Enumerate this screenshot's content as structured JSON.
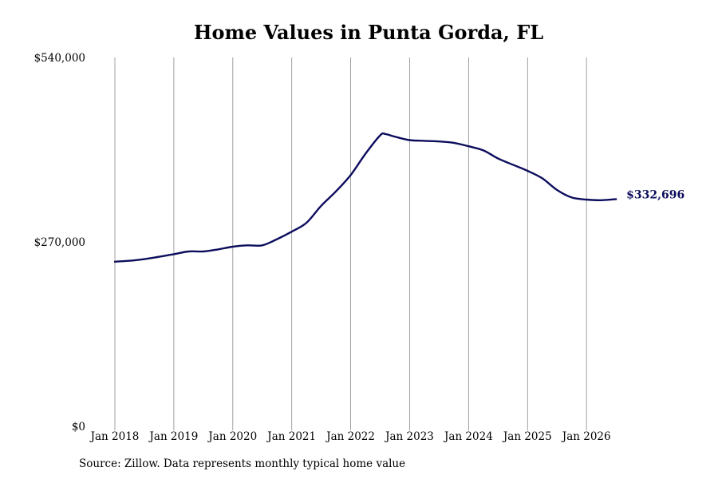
{
  "title": "Home Values in Punta Gorda, FL",
  "source": "Source: Zillow. Data represents monthly typical home value",
  "colors": {
    "line": "#0d0d5e",
    "grid": "#8a8a8a",
    "text": "#000000"
  },
  "chart_data": {
    "type": "line",
    "title": "Home Values in Punta Gorda, FL",
    "xlabel": "",
    "ylabel": "",
    "ylim": [
      0,
      540000
    ],
    "y_ticks": [
      0,
      270000,
      540000
    ],
    "y_tick_labels": [
      "$0",
      "$270,000",
      "$540,000"
    ],
    "x_ticks": [
      "2018-01",
      "2019-01",
      "2020-01",
      "2021-01",
      "2022-01",
      "2023-01",
      "2024-01",
      "2025-01",
      "2026-01"
    ],
    "x_tick_labels": [
      "Jan 2018",
      "Jan 2019",
      "Jan 2020",
      "Jan 2021",
      "Jan 2022",
      "Jan 2023",
      "Jan 2024",
      "Jan 2025",
      "Jan 2026"
    ],
    "grid": {
      "vertical": true,
      "horizontal": false
    },
    "end_label": "$332,696",
    "series": [
      {
        "x": [
          "2018-01",
          "2018-05",
          "2018-09",
          "2019-01",
          "2019-04",
          "2019-07",
          "2019-10",
          "2020-01",
          "2020-04",
          "2020-07",
          "2020-10",
          "2021-01",
          "2021-04",
          "2021-07",
          "2021-10",
          "2022-01",
          "2022-04",
          "2022-07",
          "2022-08",
          "2022-10",
          "2023-01",
          "2023-04",
          "2023-07",
          "2023-10",
          "2024-01",
          "2024-04",
          "2024-07",
          "2024-10",
          "2025-01",
          "2025-04",
          "2025-07",
          "2025-10",
          "2026-01",
          "2026-04",
          "2026-07"
        ],
        "y": [
          241000,
          243000,
          247000,
          252000,
          256000,
          256000,
          259000,
          263000,
          265000,
          265000,
          274000,
          285000,
          298000,
          323000,
          344000,
          368000,
          399000,
          426000,
          428000,
          424000,
          419000,
          418000,
          417000,
          415000,
          410000,
          404000,
          392000,
          383000,
          374000,
          363000,
          346000,
          335000,
          332000,
          331000,
          332696
        ]
      }
    ]
  }
}
